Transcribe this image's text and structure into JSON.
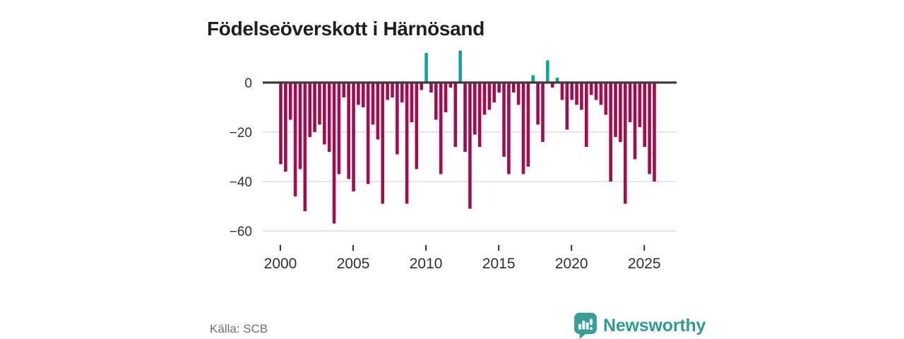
{
  "header": {
    "title": "Födelseöverskott i Härnösand"
  },
  "footer": {
    "source_label": "Källa: SCB",
    "brand_name": "Newsworthy"
  },
  "colors": {
    "bar_negative": "#a30d4d",
    "bar_positive": "#12a49c",
    "axis_line": "#3a3a3a",
    "gridline": "#dcdcdc",
    "tick_text": "#333333",
    "title_text": "#1f1f1f",
    "source_text": "#6f6f78",
    "brand_teal": "#3a9e98",
    "brand_text": "#2f9a94"
  },
  "chart_data": {
    "type": "bar",
    "title": "Födelseöverskott i Härnösand",
    "xlabel": "",
    "ylabel": "",
    "grid": "horizontal",
    "legend": "none",
    "ylim": [
      -62,
      15
    ],
    "xticks": [
      2000,
      2005,
      2010,
      2015,
      2020,
      2025
    ],
    "yticks": [
      0,
      -20,
      -40,
      -60
    ],
    "ytick_labels": [
      "0",
      "−20",
      "−40",
      "−60"
    ],
    "periods": [
      "2000 T1",
      "2000 T2",
      "2000 T3",
      "2001 T1",
      "2001 T2",
      "2001 T3",
      "2002 T1",
      "2002 T2",
      "2002 T3",
      "2003 T1",
      "2003 T2",
      "2003 T3",
      "2004 T1",
      "2004 T2",
      "2004 T3",
      "2005 T1",
      "2005 T2",
      "2005 T3",
      "2006 T1",
      "2006 T2",
      "2006 T3",
      "2007 T1",
      "2007 T2",
      "2007 T3",
      "2008 T1",
      "2008 T2",
      "2008 T3",
      "2009 T1",
      "2009 T2",
      "2009 T3",
      "2010 T1",
      "2010 T2",
      "2010 T3",
      "2011 T1",
      "2011 T2",
      "2011 T3",
      "2012 T1",
      "2012 T2",
      "2012 T3",
      "2013 T1",
      "2013 T2",
      "2013 T3",
      "2014 T1",
      "2014 T2",
      "2014 T3",
      "2015 T1",
      "2015 T2",
      "2015 T3",
      "2016 T1",
      "2016 T2",
      "2016 T3",
      "2017 T1",
      "2017 T2",
      "2017 T3",
      "2018 T1",
      "2018 T2",
      "2018 T3",
      "2019 T1",
      "2019 T2",
      "2019 T3",
      "2020 T1",
      "2020 T2",
      "2020 T3",
      "2021 T1",
      "2021 T2",
      "2021 T3",
      "2022 T1",
      "2022 T2",
      "2022 T3",
      "2023 T1",
      "2023 T2",
      "2023 T3",
      "2024 T1",
      "2024 T2",
      "2024 T3",
      "2025 T1",
      "2025 T2",
      "2025 T3"
    ],
    "values": [
      -33,
      -36,
      -15,
      -46,
      -35,
      -52,
      -22,
      -20,
      -17,
      -25,
      -28,
      -57,
      -37,
      -6,
      -39,
      -44,
      -9,
      -10,
      -41,
      -17,
      -23,
      -49,
      -7,
      -6,
      -29,
      -8,
      -49,
      -16,
      -35,
      -3,
      12,
      -4,
      -15,
      -37,
      -12,
      -2,
      -26,
      13,
      -28,
      -51,
      -21,
      -26,
      -13,
      -11,
      -8,
      -4,
      -30,
      -37,
      -4,
      -9,
      -37,
      -34,
      3,
      -17,
      -24,
      9,
      -2,
      2,
      -7,
      -19,
      -7,
      -9,
      -11,
      -26,
      -5,
      -7,
      -9,
      -13,
      -40,
      -22,
      -24,
      -49,
      -16,
      -31,
      -18,
      -26,
      -37,
      -40
    ]
  }
}
